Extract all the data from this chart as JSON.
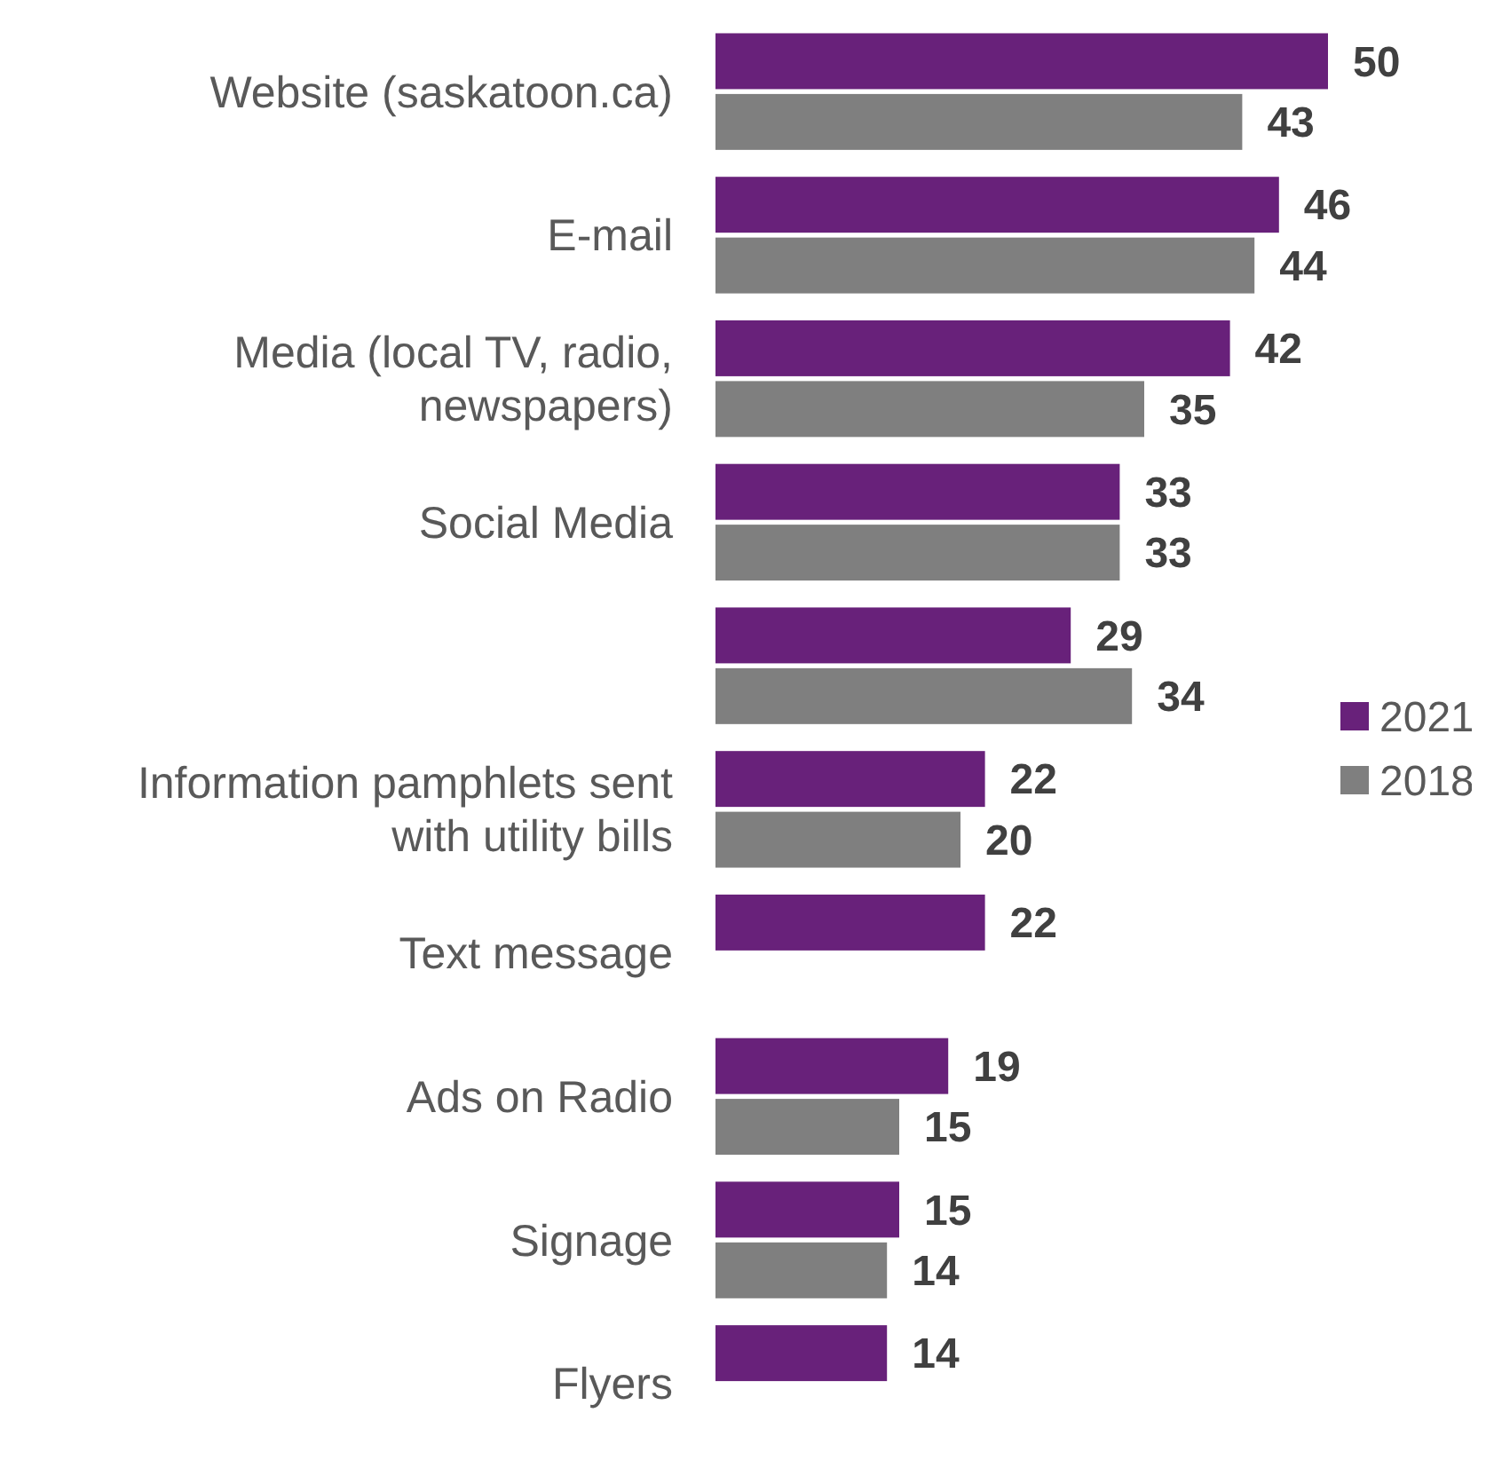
{
  "chart_data": {
    "type": "bar",
    "orientation": "horizontal",
    "categories": [
      "Website (saskatoon.ca)",
      "E-mail",
      "Media (local TV, radio, newspapers)",
      "Social Media",
      null,
      "Information pamphlets sent with utility bills",
      "Text message",
      "Ads on Radio",
      "Signage",
      "Flyers"
    ],
    "series": [
      {
        "name": "2021",
        "color": "#68217a",
        "values": [
          50,
          46,
          42,
          33,
          29,
          22,
          22,
          19,
          15,
          14
        ]
      },
      {
        "name": "2018",
        "color": "#7f7f7f",
        "values": [
          43,
          44,
          35,
          33,
          34,
          20,
          null,
          15,
          14,
          null
        ]
      }
    ],
    "data_labels": true,
    "legend": "right"
  }
}
